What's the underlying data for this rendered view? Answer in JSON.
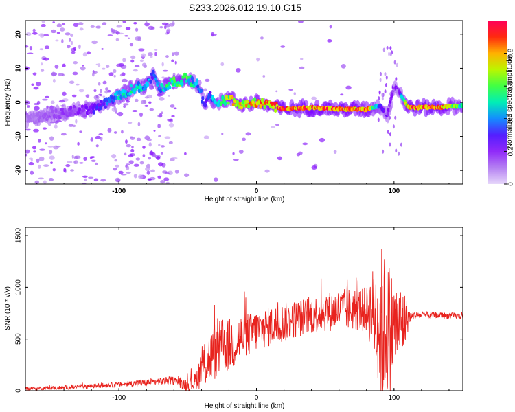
{
  "title": "S233.2026.012.19.10.G15",
  "chart_data": [
    {
      "type": "heatmap",
      "name": "spectrogram",
      "xlabel": "Height of straight line (km)",
      "ylabel": "Frequency (Hz)",
      "xlim": [
        -168,
        150
      ],
      "ylim": [
        -24,
        24
      ],
      "xticks": [
        -100,
        0,
        100
      ],
      "yticks": [
        -20,
        -10,
        0,
        10,
        20
      ],
      "colorbar": {
        "label": "Normalized spectral amplitude",
        "range": [
          0,
          1
        ],
        "ticks": [
          0,
          0.2,
          0.4,
          0.6,
          0.8
        ],
        "colors": [
          "#ffffff",
          "#d9b8f7",
          "#8000ff",
          "#3040ff",
          "#00e0ff",
          "#00ff60",
          "#b0ff00",
          "#ffd000",
          "#ff3000",
          "#ff0060"
        ]
      },
      "ridge": {
        "x": [
          -168,
          -150,
          -130,
          -115,
          -100,
          -90,
          -80,
          -75,
          -70,
          -60,
          -50,
          -42,
          -38,
          -34,
          -30,
          -20,
          -10,
          0,
          10,
          20,
          40,
          60,
          80,
          90,
          95,
          100,
          104,
          110,
          130,
          150
        ],
        "freq": [
          -5,
          -4,
          -2.5,
          -1.5,
          2,
          4,
          5,
          8,
          4,
          6,
          7,
          5,
          -1,
          2,
          0,
          1,
          -0.5,
          0,
          -1,
          -2,
          -1.5,
          -2,
          -2,
          -1,
          -4,
          5,
          3,
          -1.5,
          -1.5,
          -1
        ],
        "amplitude": [
          0.1,
          0.15,
          0.2,
          0.3,
          0.45,
          0.5,
          0.45,
          0.35,
          0.45,
          0.6,
          0.55,
          0.4,
          0.3,
          0.35,
          0.45,
          0.7,
          0.75,
          0.8,
          0.85,
          0.95,
          0.9,
          0.9,
          0.85,
          0.3,
          0.25,
          0.2,
          0.25,
          0.9,
          0.95,
          0.5
        ]
      }
    },
    {
      "type": "line",
      "name": "snr",
      "xlabel": "Height of straight line (km)",
      "ylabel": "SNR (10 * v/v)",
      "xlim": [
        -168,
        150
      ],
      "ylim": [
        0,
        1580
      ],
      "xticks": [
        -100,
        0,
        100
      ],
      "yticks": [
        0,
        500,
        1000,
        1500
      ],
      "color": "#e8231e",
      "envelope": {
        "x": [
          -168,
          -140,
          -120,
          -100,
          -80,
          -60,
          -50,
          -45,
          -40,
          -35,
          -30,
          -25,
          -20,
          -15,
          -10,
          0,
          10,
          20,
          30,
          40,
          50,
          60,
          70,
          80,
          85,
          88,
          90,
          92,
          95,
          98,
          100,
          103,
          106,
          109,
          112,
          115,
          130,
          150
        ],
        "y": [
          20,
          30,
          45,
          60,
          80,
          100,
          50,
          90,
          200,
          300,
          380,
          420,
          440,
          470,
          520,
          580,
          620,
          660,
          700,
          730,
          760,
          780,
          790,
          780,
          760,
          700,
          650,
          600,
          620,
          600,
          600,
          640,
          650,
          700,
          720,
          730,
          730,
          720
        ]
      },
      "spread": {
        "x": [
          -168,
          -100,
          -60,
          -45,
          -38,
          -30,
          -25,
          -15,
          0,
          40,
          80,
          86,
          90,
          95,
          100,
          103,
          106,
          109,
          112,
          130,
          150
        ],
        "y": [
          15,
          25,
          40,
          80,
          220,
          280,
          280,
          250,
          200,
          180,
          220,
          500,
          800,
          700,
          500,
          350,
          420,
          200,
          40,
          30,
          30
        ]
      }
    }
  ]
}
